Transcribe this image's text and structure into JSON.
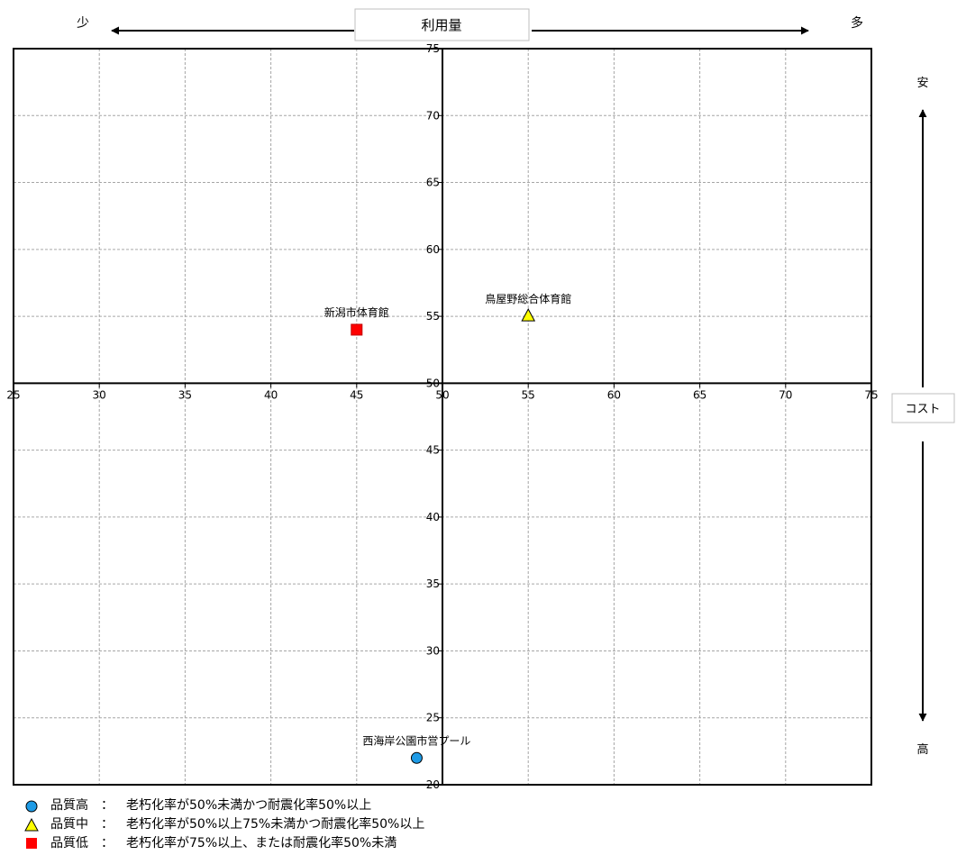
{
  "chart_data": {
    "type": "scatter",
    "header": {
      "x_label": "利用量",
      "x_low": "少",
      "x_high": "多",
      "y_label": "コスト",
      "y_low": "高",
      "y_high": "安"
    },
    "xlim": [
      25,
      75
    ],
    "ylim": [
      20,
      75
    ],
    "center": {
      "x": 50,
      "y": 50
    },
    "x_ticks": [
      25,
      30,
      35,
      40,
      45,
      50,
      55,
      60,
      65,
      70,
      75
    ],
    "y_ticks": [
      20,
      25,
      30,
      35,
      40,
      45,
      50,
      55,
      60,
      65,
      70,
      75
    ],
    "grid": true,
    "points": [
      {
        "label": "新潟市体育館",
        "x": 45,
        "y": 54,
        "category": "low"
      },
      {
        "label": "鳥屋野総合体育館",
        "x": 55,
        "y": 55,
        "category": "mid"
      },
      {
        "label": "西海岸公園市営プール",
        "x": 48.5,
        "y": 22,
        "category": "high"
      }
    ],
    "legend": [
      {
        "key": "high",
        "shape": "circle",
        "color": "#1e9be6",
        "label": "品質高",
        "sep": "：",
        "desc": "老朽化率が50%未満かつ耐震化率50%以上"
      },
      {
        "key": "mid",
        "shape": "triangle",
        "color": "#ffff00",
        "label": "品質中",
        "sep": "：",
        "desc": "老朽化率が50%以上75%未満かつ耐震化率50%以上"
      },
      {
        "key": "low",
        "shape": "square",
        "color": "#ff0000",
        "label": "品質低",
        "sep": "：",
        "desc": "老朽化率が75%以上、または耐震化率50%未満"
      }
    ]
  }
}
